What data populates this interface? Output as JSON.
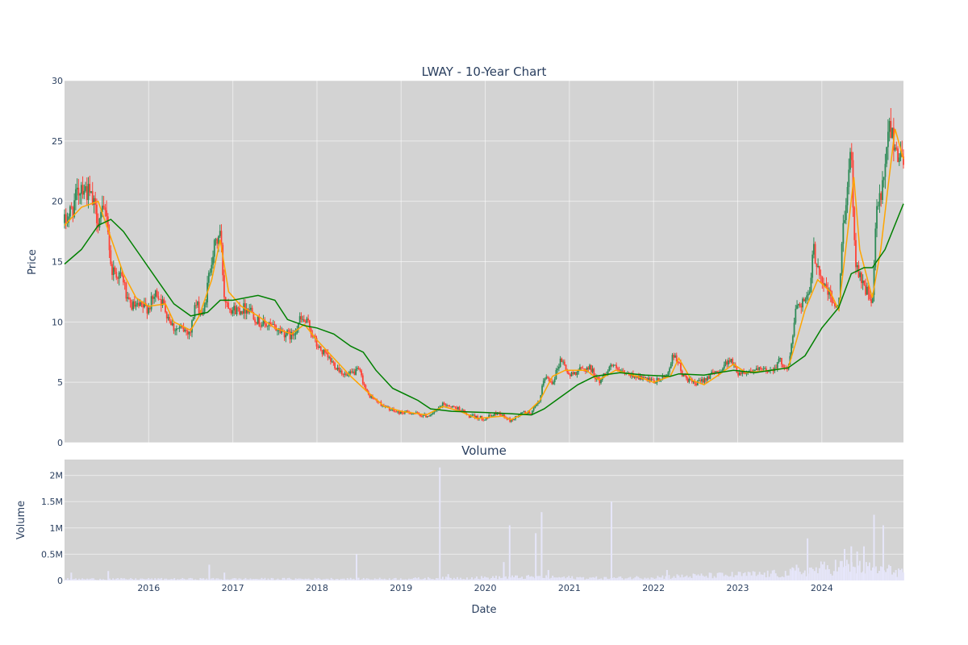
{
  "chart_data": [
    {
      "type": "candlestick",
      "title": "LWAY - 10-Year Chart",
      "xlabel": "",
      "ylabel": "Price",
      "x_range": [
        2015.0,
        2024.97
      ],
      "ylim": [
        0,
        30
      ],
      "y_ticks": [
        0,
        5,
        10,
        15,
        20,
        25,
        30
      ],
      "grid": true,
      "colors": {
        "up": "#2e8b57",
        "down": "#ff4136",
        "ma_short": "#ffa500",
        "ma_long": "#008000",
        "background": "#d3d3d3"
      },
      "series": [
        {
          "values": [
            [
              2015.0,
              18.2
            ],
            [
              2015.1,
              19.5
            ],
            [
              2015.2,
              21.5
            ],
            [
              2015.3,
              20.5
            ],
            [
              2015.4,
              18.5
            ],
            [
              2015.5,
              19.2
            ],
            [
              2015.55,
              14.5
            ],
            [
              2015.7,
              13.5
            ],
            [
              2015.75,
              11.5
            ],
            [
              2015.85,
              11.2
            ],
            [
              2016.0,
              11.2
            ],
            [
              2016.1,
              12.5
            ],
            [
              2016.2,
              11.0
            ],
            [
              2016.3,
              9.5
            ],
            [
              2016.5,
              9.2
            ],
            [
              2016.55,
              11.5
            ],
            [
              2016.65,
              10.5
            ],
            [
              2016.75,
              15.5
            ],
            [
              2016.85,
              17.5
            ],
            [
              2016.9,
              12.0
            ],
            [
              2017.0,
              11.0
            ],
            [
              2017.2,
              11.2
            ],
            [
              2017.3,
              10.0
            ],
            [
              2017.5,
              9.5
            ],
            [
              2017.7,
              8.8
            ],
            [
              2017.8,
              10.2
            ],
            [
              2017.9,
              9.8
            ],
            [
              2018.0,
              8.0
            ],
            [
              2018.2,
              6.5
            ],
            [
              2018.35,
              5.5
            ],
            [
              2018.5,
              6.0
            ],
            [
              2018.6,
              4.0
            ],
            [
              2018.8,
              3.0
            ],
            [
              2018.95,
              2.5
            ],
            [
              2019.1,
              2.5
            ],
            [
              2019.3,
              2.2
            ],
            [
              2019.4,
              2.5
            ],
            [
              2019.5,
              3.2
            ],
            [
              2019.7,
              2.8
            ],
            [
              2019.8,
              2.2
            ],
            [
              2020.0,
              2.0
            ],
            [
              2020.15,
              2.5
            ],
            [
              2020.3,
              1.8
            ],
            [
              2020.45,
              2.5
            ],
            [
              2020.55,
              2.5
            ],
            [
              2020.65,
              3.5
            ],
            [
              2020.7,
              5.5
            ],
            [
              2020.8,
              5.0
            ],
            [
              2020.9,
              7.0
            ],
            [
              2021.0,
              5.5
            ],
            [
              2021.1,
              6.0
            ],
            [
              2021.25,
              6.2
            ],
            [
              2021.35,
              5.0
            ],
            [
              2021.5,
              6.5
            ],
            [
              2021.6,
              5.8
            ],
            [
              2021.8,
              5.5
            ],
            [
              2022.0,
              5.0
            ],
            [
              2022.15,
              5.5
            ],
            [
              2022.25,
              7.5
            ],
            [
              2022.35,
              5.5
            ],
            [
              2022.5,
              4.8
            ],
            [
              2022.65,
              5.5
            ],
            [
              2022.8,
              6.0
            ],
            [
              2022.9,
              7.0
            ],
            [
              2023.0,
              5.8
            ],
            [
              2023.2,
              6.0
            ],
            [
              2023.4,
              6.0
            ],
            [
              2023.5,
              6.8
            ],
            [
              2023.6,
              6.0
            ],
            [
              2023.7,
              11.5
            ],
            [
              2023.85,
              12.0
            ],
            [
              2023.9,
              16.0
            ],
            [
              2024.0,
              13.5
            ],
            [
              2024.1,
              12.0
            ],
            [
              2024.2,
              11.0
            ],
            [
              2024.25,
              18.0
            ],
            [
              2024.35,
              24.0
            ],
            [
              2024.4,
              15.0
            ],
            [
              2024.5,
              13.0
            ],
            [
              2024.6,
              11.5
            ],
            [
              2024.65,
              19.0
            ],
            [
              2024.75,
              22.0
            ],
            [
              2024.8,
              26.5
            ],
            [
              2024.9,
              24.0
            ],
            [
              2024.97,
              23.5
            ]
          ]
        },
        {
          "values": [
            [
              2015.0,
              18.0
            ],
            [
              2015.2,
              19.5
            ],
            [
              2015.4,
              20.0
            ],
            [
              2015.55,
              17.0
            ],
            [
              2015.7,
              14.0
            ],
            [
              2015.85,
              12.0
            ],
            [
              2016.0,
              11.3
            ],
            [
              2016.2,
              11.5
            ],
            [
              2016.3,
              10.0
            ],
            [
              2016.5,
              9.3
            ],
            [
              2016.6,
              10.5
            ],
            [
              2016.75,
              13.5
            ],
            [
              2016.85,
              16.8
            ],
            [
              2016.95,
              12.5
            ],
            [
              2017.1,
              11.3
            ],
            [
              2017.3,
              10.5
            ],
            [
              2017.5,
              9.5
            ],
            [
              2017.7,
              9.0
            ],
            [
              2017.85,
              9.8
            ],
            [
              2018.0,
              8.5
            ],
            [
              2018.2,
              7.0
            ],
            [
              2018.4,
              5.5
            ],
            [
              2018.6,
              4.2
            ],
            [
              2018.8,
              3.0
            ],
            [
              2019.0,
              2.6
            ],
            [
              2019.3,
              2.3
            ],
            [
              2019.5,
              3.0
            ],
            [
              2019.7,
              2.6
            ],
            [
              2019.9,
              2.0
            ],
            [
              2020.2,
              2.2
            ],
            [
              2020.3,
              1.9
            ],
            [
              2020.5,
              2.5
            ],
            [
              2020.65,
              3.5
            ],
            [
              2020.8,
              5.5
            ],
            [
              2020.95,
              6.0
            ],
            [
              2021.2,
              6.0
            ],
            [
              2021.35,
              5.2
            ],
            [
              2021.55,
              6.0
            ],
            [
              2021.8,
              5.5
            ],
            [
              2022.0,
              5.0
            ],
            [
              2022.2,
              5.5
            ],
            [
              2022.3,
              7.0
            ],
            [
              2022.45,
              5.2
            ],
            [
              2022.6,
              4.8
            ],
            [
              2022.75,
              5.5
            ],
            [
              2022.95,
              6.5
            ],
            [
              2023.1,
              5.8
            ],
            [
              2023.4,
              6.0
            ],
            [
              2023.6,
              6.2
            ],
            [
              2023.7,
              8.5
            ],
            [
              2023.8,
              11.0
            ],
            [
              2023.95,
              13.5
            ],
            [
              2024.1,
              12.5
            ],
            [
              2024.2,
              11.0
            ],
            [
              2024.3,
              17.0
            ],
            [
              2024.38,
              22.0
            ],
            [
              2024.45,
              16.0
            ],
            [
              2024.6,
              12.0
            ],
            [
              2024.7,
              16.0
            ],
            [
              2024.8,
              22.0
            ],
            [
              2024.87,
              26.0
            ],
            [
              2024.97,
              23.5
            ]
          ]
        },
        {
          "values": [
            [
              2015.0,
              14.8
            ],
            [
              2015.2,
              16.0
            ],
            [
              2015.4,
              18.0
            ],
            [
              2015.55,
              18.5
            ],
            [
              2015.7,
              17.5
            ],
            [
              2015.9,
              15.5
            ],
            [
              2016.1,
              13.5
            ],
            [
              2016.3,
              11.5
            ],
            [
              2016.5,
              10.5
            ],
            [
              2016.7,
              10.8
            ],
            [
              2016.85,
              11.8
            ],
            [
              2017.0,
              11.8
            ],
            [
              2017.3,
              12.2
            ],
            [
              2017.5,
              11.8
            ],
            [
              2017.65,
              10.2
            ],
            [
              2017.85,
              9.7
            ],
            [
              2018.0,
              9.5
            ],
            [
              2018.2,
              9.0
            ],
            [
              2018.4,
              8.0
            ],
            [
              2018.55,
              7.5
            ],
            [
              2018.7,
              6.0
            ],
            [
              2018.9,
              4.5
            ],
            [
              2019.2,
              3.5
            ],
            [
              2019.35,
              2.8
            ],
            [
              2019.6,
              2.6
            ],
            [
              2020.0,
              2.5
            ],
            [
              2020.3,
              2.4
            ],
            [
              2020.55,
              2.3
            ],
            [
              2020.7,
              2.8
            ],
            [
              2020.9,
              3.8
            ],
            [
              2021.1,
              4.8
            ],
            [
              2021.3,
              5.5
            ],
            [
              2021.6,
              5.8
            ],
            [
              2021.9,
              5.6
            ],
            [
              2022.2,
              5.5
            ],
            [
              2022.3,
              5.7
            ],
            [
              2022.6,
              5.6
            ],
            [
              2022.95,
              6.0
            ],
            [
              2023.2,
              5.8
            ],
            [
              2023.6,
              6.2
            ],
            [
              2023.8,
              7.2
            ],
            [
              2024.0,
              9.5
            ],
            [
              2024.2,
              11.2
            ],
            [
              2024.35,
              14.0
            ],
            [
              2024.5,
              14.5
            ],
            [
              2024.6,
              14.5
            ],
            [
              2024.75,
              16.0
            ],
            [
              2024.97,
              19.8
            ]
          ]
        }
      ]
    },
    {
      "type": "bar",
      "title": "Volume",
      "xlabel": "Date",
      "ylabel": "Volume",
      "x_ticks": [
        "2016",
        "2017",
        "2018",
        "2019",
        "2020",
        "2021",
        "2022",
        "2023",
        "2024"
      ],
      "x_range": [
        2015.0,
        2024.97
      ],
      "ylim": [
        0,
        2300000
      ],
      "y_ticks": [
        0,
        500000,
        1000000,
        1500000,
        2000000
      ],
      "y_tick_labels": [
        "0",
        "0.5M",
        "1M",
        "1.5M",
        "2M"
      ],
      "grid": true,
      "colors": {
        "bar": "#e6e6fa",
        "background": "#d3d3d3"
      },
      "spikes": [
        [
          2015.08,
          150000
        ],
        [
          2015.52,
          180000
        ],
        [
          2016.72,
          300000
        ],
        [
          2016.9,
          150000
        ],
        [
          2018.47,
          500000
        ],
        [
          2019.46,
          2150000
        ],
        [
          2019.56,
          120000
        ],
        [
          2020.22,
          350000
        ],
        [
          2020.29,
          1050000
        ],
        [
          2020.6,
          900000
        ],
        [
          2020.67,
          1300000
        ],
        [
          2020.75,
          200000
        ],
        [
          2021.5,
          1500000
        ],
        [
          2022.16,
          200000
        ],
        [
          2023.65,
          250000
        ],
        [
          2023.7,
          300000
        ],
        [
          2023.83,
          800000
        ],
        [
          2024.27,
          600000
        ],
        [
          2024.35,
          650000
        ],
        [
          2024.42,
          550000
        ],
        [
          2024.5,
          650000
        ],
        [
          2024.62,
          1250000
        ],
        [
          2024.73,
          1050000
        ],
        [
          2024.88,
          200000
        ]
      ],
      "base_levels": [
        [
          2015.0,
          25000
        ],
        [
          2019.0,
          30000
        ],
        [
          2020.5,
          60000
        ],
        [
          2021.5,
          40000
        ],
        [
          2023.6,
          120000
        ],
        [
          2024.2,
          250000
        ],
        [
          2024.97,
          150000
        ]
      ]
    }
  ]
}
